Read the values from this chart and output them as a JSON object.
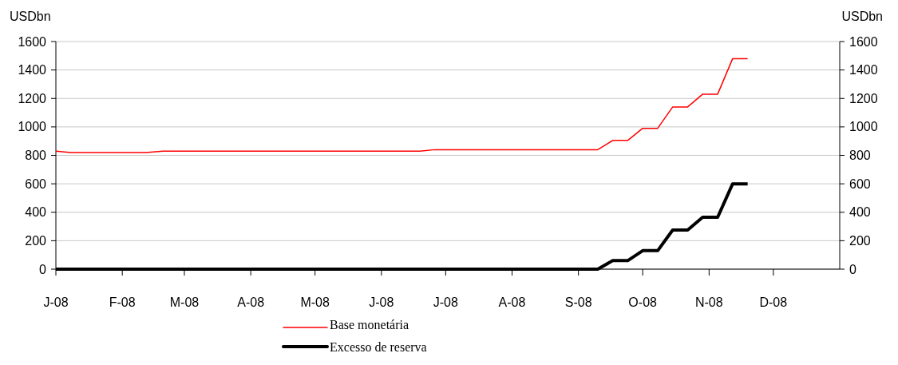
{
  "chart_data": {
    "type": "line",
    "ylabel": "USDbn",
    "y2label": "USDbn",
    "xlim": [
      "2008-01-01",
      "2009-01-01"
    ],
    "xticks": [
      {
        "value": "2008-01-01",
        "label": "J-08"
      },
      {
        "value": "2008-02-01",
        "label": "F-08"
      },
      {
        "value": "2008-03-01",
        "label": "M-08"
      },
      {
        "value": "2008-04-01",
        "label": "A-08"
      },
      {
        "value": "2008-05-01",
        "label": "M-08"
      },
      {
        "value": "2008-06-01",
        "label": "J-08"
      },
      {
        "value": "2008-07-01",
        "label": "J-08"
      },
      {
        "value": "2008-08-01",
        "label": "A-08"
      },
      {
        "value": "2008-09-01",
        "label": "S-08"
      },
      {
        "value": "2008-10-01",
        "label": "O-08"
      },
      {
        "value": "2008-11-01",
        "label": "N-08"
      },
      {
        "value": "2008-12-01",
        "label": "D-08"
      }
    ],
    "ylim": [
      0,
      1600
    ],
    "yticks": [
      0,
      200,
      400,
      600,
      800,
      1000,
      1200,
      1400,
      1600
    ],
    "y2lim": [
      0,
      1600
    ],
    "y2ticks": [
      0,
      200,
      400,
      600,
      800,
      1000,
      1200,
      1400,
      1600
    ],
    "grid": "y",
    "legend": "bottom",
    "series": [
      {
        "name": "Base monetária",
        "color": "#ff0000",
        "x": [
          "2008-01-01",
          "2008-01-08",
          "2008-02-12",
          "2008-02-20",
          "2008-06-19",
          "2008-06-26",
          "2008-09-10",
          "2008-09-17",
          "2008-09-24",
          "2008-10-01",
          "2008-10-08",
          "2008-10-15",
          "2008-10-22",
          "2008-10-29",
          "2008-11-05",
          "2008-11-12",
          "2008-11-19"
        ],
        "values": [
          830,
          820,
          820,
          830,
          830,
          840,
          840,
          905,
          905,
          990,
          990,
          1140,
          1140,
          1230,
          1230,
          1480,
          1480
        ]
      },
      {
        "name": "Excesso de reserva",
        "color": "#000000",
        "x": [
          "2008-01-01",
          "2008-09-10",
          "2008-09-17",
          "2008-09-24",
          "2008-10-01",
          "2008-10-08",
          "2008-10-15",
          "2008-10-22",
          "2008-10-29",
          "2008-11-05",
          "2008-11-12",
          "2008-11-19"
        ],
        "values": [
          0,
          0,
          60,
          60,
          130,
          130,
          275,
          275,
          365,
          365,
          600,
          600
        ]
      }
    ]
  }
}
